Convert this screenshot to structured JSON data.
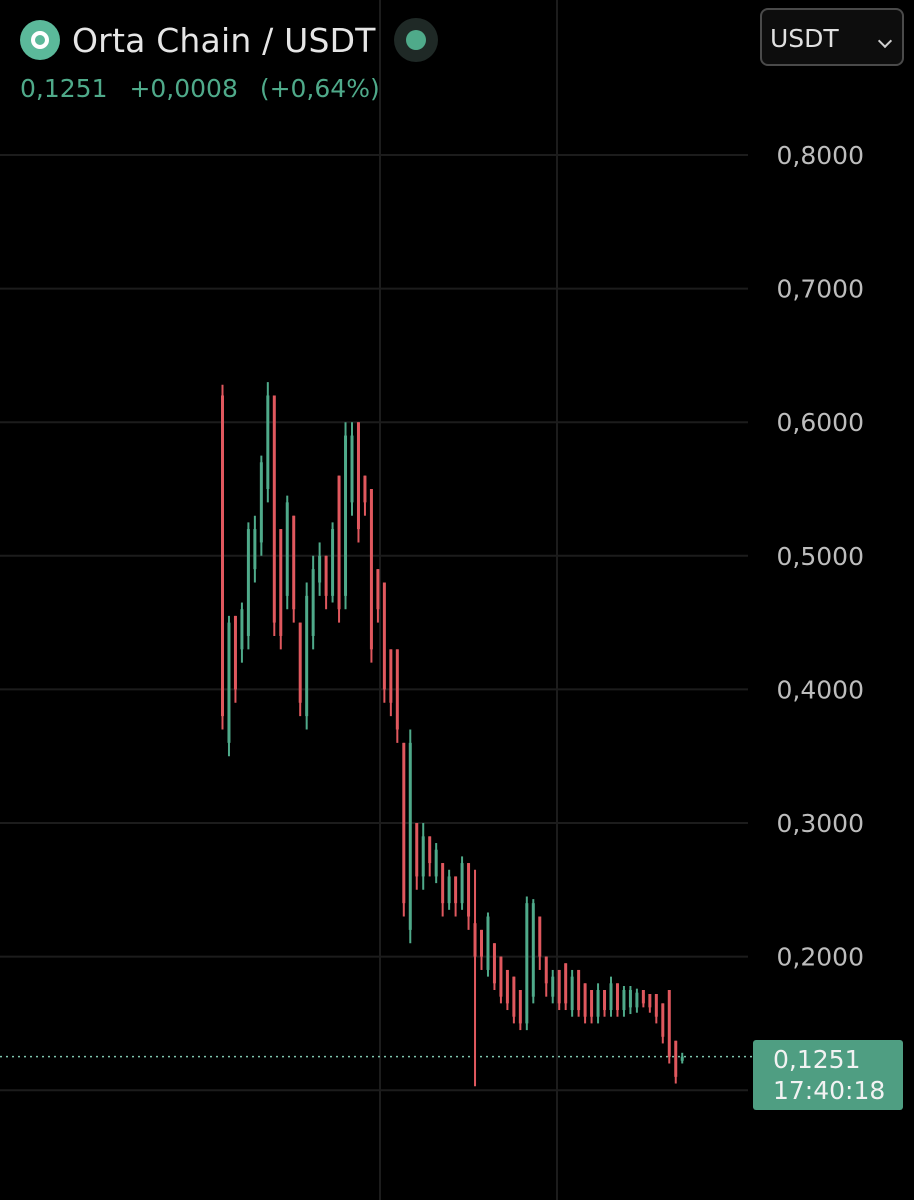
{
  "header": {
    "pair_title": "Orta Chain / USDT",
    "last_price": "0,1251",
    "change_abs": "+0,0008",
    "change_pct": "(+0,64%)"
  },
  "currency_select": {
    "value": "USDT"
  },
  "price_tag": {
    "value": "0,1251",
    "countdown": "17:40:18"
  },
  "colors": {
    "up": "#4faa8a",
    "down": "#e0585e",
    "background": "#000000",
    "grid": "#1c1c1c",
    "axis_text": "#bdbdbd"
  },
  "chart_data": {
    "type": "candlestick",
    "y_ticks": [
      "0,8000",
      "0,7000",
      "0,6000",
      "0,5000",
      "0,4000",
      "0,3000",
      "0,2000"
    ],
    "y_tick_values": [
      0.8,
      0.7,
      0.6,
      0.5,
      0.4,
      0.3,
      0.2
    ],
    "ylim": [
      0.075,
      0.83
    ],
    "grid": true,
    "last_price_line": 0.1251,
    "candles": [
      {
        "d": "down",
        "o": 0.62,
        "h": 0.628,
        "l": 0.37,
        "c": 0.38
      },
      {
        "d": "up",
        "o": 0.36,
        "h": 0.455,
        "l": 0.35,
        "c": 0.45
      },
      {
        "d": "down",
        "o": 0.455,
        "h": 0.455,
        "l": 0.39,
        "c": 0.4
      },
      {
        "d": "up",
        "o": 0.43,
        "h": 0.465,
        "l": 0.42,
        "c": 0.46
      },
      {
        "d": "up",
        "o": 0.44,
        "h": 0.525,
        "l": 0.43,
        "c": 0.52
      },
      {
        "d": "up",
        "o": 0.49,
        "h": 0.53,
        "l": 0.48,
        "c": 0.52
      },
      {
        "d": "up",
        "o": 0.51,
        "h": 0.575,
        "l": 0.5,
        "c": 0.57
      },
      {
        "d": "up",
        "o": 0.55,
        "h": 0.63,
        "l": 0.54,
        "c": 0.62
      },
      {
        "d": "down",
        "o": 0.62,
        "h": 0.62,
        "l": 0.44,
        "c": 0.45
      },
      {
        "d": "down",
        "o": 0.52,
        "h": 0.52,
        "l": 0.43,
        "c": 0.44
      },
      {
        "d": "up",
        "o": 0.47,
        "h": 0.545,
        "l": 0.46,
        "c": 0.54
      },
      {
        "d": "down",
        "o": 0.53,
        "h": 0.53,
        "l": 0.45,
        "c": 0.46
      },
      {
        "d": "down",
        "o": 0.45,
        "h": 0.45,
        "l": 0.38,
        "c": 0.39
      },
      {
        "d": "up",
        "o": 0.38,
        "h": 0.48,
        "l": 0.37,
        "c": 0.47
      },
      {
        "d": "up",
        "o": 0.44,
        "h": 0.5,
        "l": 0.43,
        "c": 0.49
      },
      {
        "d": "up",
        "o": 0.48,
        "h": 0.51,
        "l": 0.47,
        "c": 0.5
      },
      {
        "d": "down",
        "o": 0.5,
        "h": 0.5,
        "l": 0.46,
        "c": 0.47
      },
      {
        "d": "up",
        "o": 0.47,
        "h": 0.525,
        "l": 0.465,
        "c": 0.52
      },
      {
        "d": "down",
        "o": 0.56,
        "h": 0.56,
        "l": 0.45,
        "c": 0.46
      },
      {
        "d": "up",
        "o": 0.47,
        "h": 0.6,
        "l": 0.46,
        "c": 0.59
      },
      {
        "d": "up",
        "o": 0.54,
        "h": 0.6,
        "l": 0.53,
        "c": 0.59
      },
      {
        "d": "down",
        "o": 0.6,
        "h": 0.6,
        "l": 0.51,
        "c": 0.52
      },
      {
        "d": "down",
        "o": 0.56,
        "h": 0.56,
        "l": 0.53,
        "c": 0.54
      },
      {
        "d": "down",
        "o": 0.55,
        "h": 0.55,
        "l": 0.42,
        "c": 0.43
      },
      {
        "d": "down",
        "o": 0.49,
        "h": 0.49,
        "l": 0.45,
        "c": 0.46
      },
      {
        "d": "down",
        "o": 0.48,
        "h": 0.48,
        "l": 0.39,
        "c": 0.4
      },
      {
        "d": "down",
        "o": 0.43,
        "h": 0.43,
        "l": 0.38,
        "c": 0.39
      },
      {
        "d": "down",
        "o": 0.43,
        "h": 0.43,
        "l": 0.36,
        "c": 0.37
      },
      {
        "d": "down",
        "o": 0.36,
        "h": 0.36,
        "l": 0.23,
        "c": 0.24
      },
      {
        "d": "up",
        "o": 0.22,
        "h": 0.37,
        "l": 0.21,
        "c": 0.36
      },
      {
        "d": "down",
        "o": 0.3,
        "h": 0.3,
        "l": 0.25,
        "c": 0.26
      },
      {
        "d": "up",
        "o": 0.26,
        "h": 0.3,
        "l": 0.25,
        "c": 0.29
      },
      {
        "d": "down",
        "o": 0.29,
        "h": 0.29,
        "l": 0.26,
        "c": 0.27
      },
      {
        "d": "up",
        "o": 0.26,
        "h": 0.285,
        "l": 0.255,
        "c": 0.28
      },
      {
        "d": "down",
        "o": 0.27,
        "h": 0.27,
        "l": 0.23,
        "c": 0.24
      },
      {
        "d": "up",
        "o": 0.24,
        "h": 0.265,
        "l": 0.235,
        "c": 0.26
      },
      {
        "d": "down",
        "o": 0.26,
        "h": 0.26,
        "l": 0.23,
        "c": 0.24
      },
      {
        "d": "up",
        "o": 0.24,
        "h": 0.275,
        "l": 0.235,
        "c": 0.27
      },
      {
        "d": "down",
        "o": 0.27,
        "h": 0.27,
        "l": 0.22,
        "c": 0.23
      },
      {
        "d": "down",
        "o": 0.225,
        "h": 0.265,
        "l": 0.103,
        "c": 0.2
      },
      {
        "d": "down",
        "o": 0.22,
        "h": 0.22,
        "l": 0.19,
        "c": 0.2
      },
      {
        "d": "up",
        "o": 0.19,
        "h": 0.233,
        "l": 0.185,
        "c": 0.23
      },
      {
        "d": "down",
        "o": 0.21,
        "h": 0.21,
        "l": 0.175,
        "c": 0.18
      },
      {
        "d": "down",
        "o": 0.2,
        "h": 0.2,
        "l": 0.165,
        "c": 0.17
      },
      {
        "d": "down",
        "o": 0.19,
        "h": 0.19,
        "l": 0.16,
        "c": 0.165
      },
      {
        "d": "down",
        "o": 0.185,
        "h": 0.185,
        "l": 0.15,
        "c": 0.155
      },
      {
        "d": "down",
        "o": 0.175,
        "h": 0.175,
        "l": 0.145,
        "c": 0.15
      },
      {
        "d": "up",
        "o": 0.15,
        "h": 0.245,
        "l": 0.145,
        "c": 0.24
      },
      {
        "d": "up",
        "o": 0.17,
        "h": 0.243,
        "l": 0.165,
        "c": 0.24
      },
      {
        "d": "down",
        "o": 0.23,
        "h": 0.23,
        "l": 0.19,
        "c": 0.2
      },
      {
        "d": "down",
        "o": 0.2,
        "h": 0.2,
        "l": 0.17,
        "c": 0.18
      },
      {
        "d": "up",
        "o": 0.17,
        "h": 0.19,
        "l": 0.165,
        "c": 0.185
      },
      {
        "d": "down",
        "o": 0.19,
        "h": 0.19,
        "l": 0.16,
        "c": 0.165
      },
      {
        "d": "down",
        "o": 0.195,
        "h": 0.195,
        "l": 0.16,
        "c": 0.165
      },
      {
        "d": "up",
        "o": 0.16,
        "h": 0.19,
        "l": 0.155,
        "c": 0.185
      },
      {
        "d": "down",
        "o": 0.19,
        "h": 0.19,
        "l": 0.155,
        "c": 0.16
      },
      {
        "d": "down",
        "o": 0.18,
        "h": 0.18,
        "l": 0.15,
        "c": 0.155
      },
      {
        "d": "down",
        "o": 0.175,
        "h": 0.175,
        "l": 0.15,
        "c": 0.155
      },
      {
        "d": "up",
        "o": 0.155,
        "h": 0.18,
        "l": 0.15,
        "c": 0.175
      },
      {
        "d": "down",
        "o": 0.175,
        "h": 0.175,
        "l": 0.155,
        "c": 0.16
      },
      {
        "d": "up",
        "o": 0.16,
        "h": 0.185,
        "l": 0.155,
        "c": 0.18
      },
      {
        "d": "down",
        "o": 0.18,
        "h": 0.18,
        "l": 0.155,
        "c": 0.16
      },
      {
        "d": "up",
        "o": 0.16,
        "h": 0.178,
        "l": 0.155,
        "c": 0.175
      },
      {
        "d": "up",
        "o": 0.162,
        "h": 0.178,
        "l": 0.157,
        "c": 0.175
      },
      {
        "d": "up",
        "o": 0.162,
        "h": 0.176,
        "l": 0.158,
        "c": 0.173
      },
      {
        "d": "down",
        "o": 0.175,
        "h": 0.175,
        "l": 0.162,
        "c": 0.165
      },
      {
        "d": "down",
        "o": 0.172,
        "h": 0.172,
        "l": 0.158,
        "c": 0.162
      },
      {
        "d": "down",
        "o": 0.172,
        "h": 0.172,
        "l": 0.15,
        "c": 0.155
      },
      {
        "d": "down",
        "o": 0.165,
        "h": 0.165,
        "l": 0.135,
        "c": 0.14
      },
      {
        "d": "down",
        "o": 0.175,
        "h": 0.175,
        "l": 0.12,
        "c": 0.125
      },
      {
        "d": "down",
        "o": 0.137,
        "h": 0.137,
        "l": 0.105,
        "c": 0.11
      },
      {
        "d": "up",
        "o": 0.122,
        "h": 0.128,
        "l": 0.12,
        "c": 0.1251
      }
    ]
  }
}
